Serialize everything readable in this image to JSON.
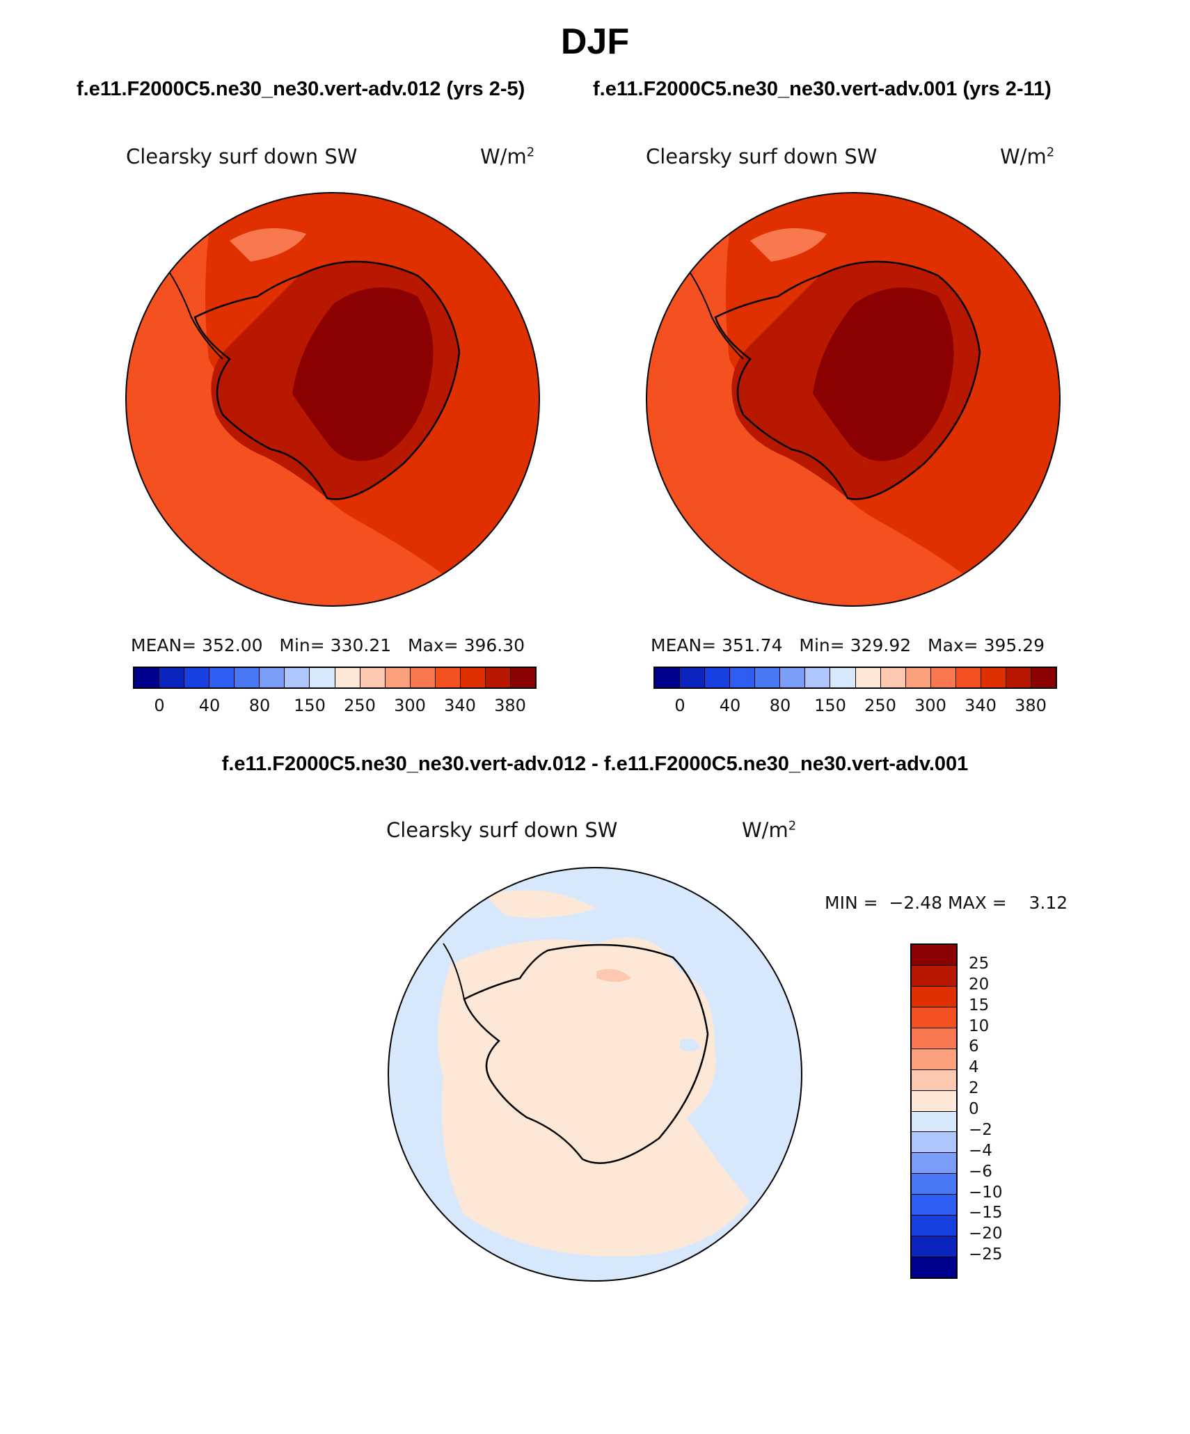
{
  "title": "DJF",
  "panels": [
    {
      "case_label": "f.e11.F2000C5.ne30_ne30.vert-adv.012 (yrs 2-5)",
      "variable": "Clearsky surf down SW",
      "units_base": "W/m",
      "units_exp": "2",
      "mean_label": "MEAN=",
      "mean_value": "352.00",
      "min_label": "Min=",
      "min_value": "330.21",
      "max_label": "Max=",
      "max_value": "396.30",
      "colorbar_ticks": [
        "0",
        "40",
        "80",
        "150",
        "250",
        "300",
        "340",
        "380"
      ]
    },
    {
      "case_label": "f.e11.F2000C5.ne30_ne30.vert-adv.001 (yrs 2-11)",
      "variable": "Clearsky surf down SW",
      "units_base": "W/m",
      "units_exp": "2",
      "mean_label": "MEAN=",
      "mean_value": "351.74",
      "min_label": "Min=",
      "min_value": "329.92",
      "max_label": "Max=",
      "max_value": "395.29",
      "colorbar_ticks": [
        "0",
        "40",
        "80",
        "150",
        "250",
        "300",
        "340",
        "380"
      ]
    }
  ],
  "diff": {
    "label": "f.e11.F2000C5.ne30_ne30.vert-adv.012 - f.e11.F2000C5.ne30_ne30.vert-adv.001",
    "variable": "Clearsky surf down SW",
    "units_base": "W/m",
    "units_exp": "2",
    "min_label": "MIN =",
    "min_value": "−2.48",
    "max_label": "MAX =",
    "max_value": "3.12",
    "colorbar_ticks": [
      "25",
      "20",
      "15",
      "10",
      "6",
      "4",
      "2",
      "0",
      "−2",
      "−4",
      "−6",
      "−10",
      "−15",
      "−20",
      "−25"
    ]
  },
  "colors": {
    "abs_scale": [
      "#00008f",
      "#0b24bd",
      "#1840e0",
      "#2e5ff2",
      "#4a78f5",
      "#7a9ef8",
      "#aec6fb",
      "#d8e8fc",
      "#fde8d8",
      "#fcc8b0",
      "#fba07c",
      "#f87850",
      "#f45020",
      "#e03000",
      "#b81800",
      "#8b0000"
    ],
    "diff_scale": [
      "#8b0000",
      "#b81800",
      "#e03000",
      "#f45020",
      "#f87850",
      "#fba07c",
      "#fcc8b0",
      "#fde8d8",
      "#d8e8fc",
      "#aec6fb",
      "#7a9ef8",
      "#4a78f5",
      "#2e5ff2",
      "#1840e0",
      "#0b24bd",
      "#00008f"
    ]
  }
}
